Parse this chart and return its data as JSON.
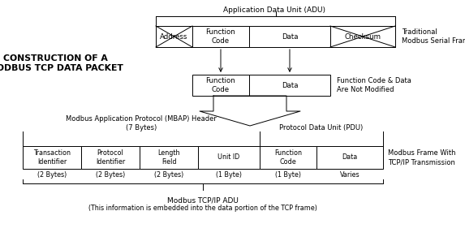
{
  "title_left": "CONSTRUCTION OF A\nMODBUS TCP DATA PACKET",
  "adu_label": "Application Data Unit (ADU)",
  "serial_frame_label": "Traditional\nModbus Serial Frame",
  "pdu_label_right": "Function Code & Data\nAre Not Modified",
  "mbap_label": "Modbus Application Protocol (MBAP) Header\n(7 Bytes)",
  "pdu_header_label": "Protocol Data Unit (PDU)",
  "modbus_frame_label": "Modbus Frame With\nTCP/IP Transmission",
  "tcpip_adu_label": "Modbus TCP/IP ADU",
  "tcpip_adu_sub": "(This information is embedded into the data portion of the TCP frame)",
  "bg_color": "#ffffff",
  "box_color": "#ffffff",
  "border_color": "#000000",
  "text_color": "#000000"
}
